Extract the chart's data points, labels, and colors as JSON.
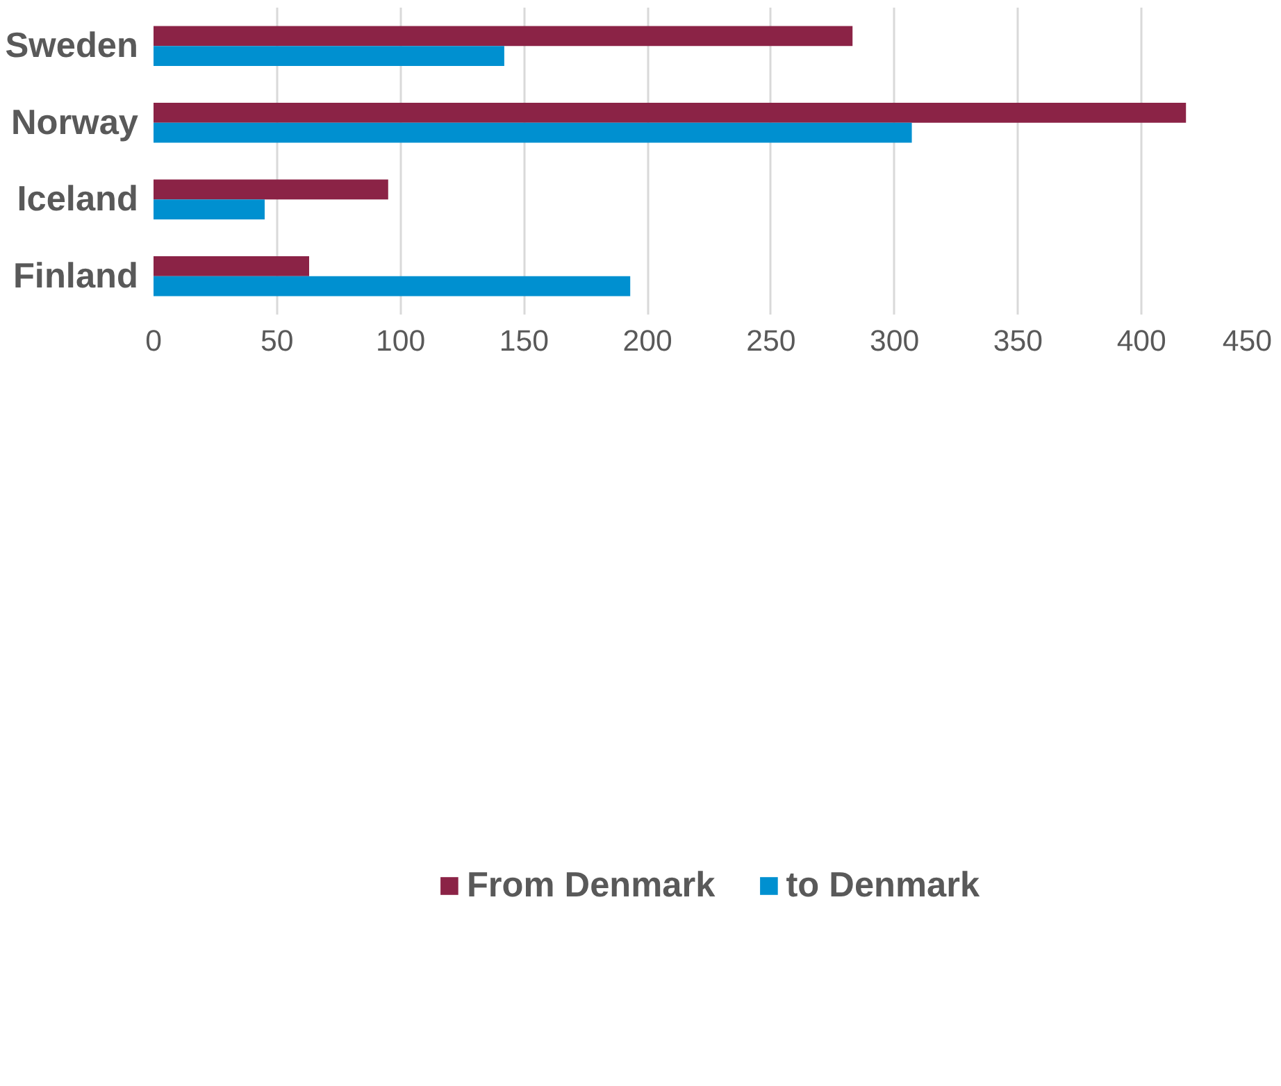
{
  "chart_data": {
    "type": "bar",
    "orientation": "horizontal",
    "categories": [
      "Sweden",
      "Norway",
      "Iceland",
      "Finland"
    ],
    "series": [
      {
        "name": "From Denmark",
        "color": "#8b2346",
        "values": [
          283,
          418,
          95,
          63
        ]
      },
      {
        "name": "to Denmark",
        "color": "#0090d0",
        "values": [
          142,
          307,
          45,
          193
        ]
      }
    ],
    "xlim": [
      0,
      450
    ],
    "xticks": [
      0,
      50,
      100,
      150,
      200,
      250,
      300,
      350,
      400,
      450
    ],
    "grid": "x",
    "legend": "bottom"
  }
}
